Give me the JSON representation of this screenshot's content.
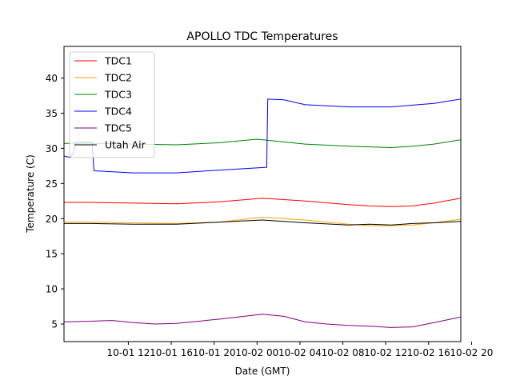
{
  "chart_data": {
    "type": "line",
    "title": "APOLLO TDC Temperatures",
    "xlabel": "Date (GMT)",
    "ylabel": "Temperature (C)",
    "xlim": [
      -2.5,
      34.5
    ],
    "ylim": [
      2.5,
      44.5
    ],
    "x_units": "hours since 10-01 08:00 GMT",
    "xticks": [
      {
        "x": 3.5,
        "label": "10-01 12"
      },
      {
        "x": 7.5,
        "label": "10-01 16"
      },
      {
        "x": 11.5,
        "label": "10-01 20"
      },
      {
        "x": 15.5,
        "label": "10-02 00"
      },
      {
        "x": 19.5,
        "label": "10-02 04"
      },
      {
        "x": 23.5,
        "label": "10-02 08"
      },
      {
        "x": 27.5,
        "label": "10-02 12"
      },
      {
        "x": 31.5,
        "label": "10-02 16"
      },
      {
        "x": 35.5,
        "label": "10-02 20"
      }
    ],
    "yticks": [
      5,
      10,
      15,
      20,
      25,
      30,
      35,
      40
    ],
    "grid": false,
    "legend_position": "top-left",
    "series": [
      {
        "name": "TDC1",
        "color": "#ff0000",
        "x": [
          -2.5,
          0,
          4,
          8,
          12,
          16,
          20,
          24,
          26,
          28,
          30,
          32,
          34.5
        ],
        "y": [
          22.3,
          22.3,
          22.2,
          22.1,
          22.4,
          22.9,
          22.5,
          22.0,
          21.8,
          21.7,
          21.8,
          22.2,
          22.9
        ]
      },
      {
        "name": "TDC2",
        "color": "#ffa500",
        "x": [
          -2.5,
          0,
          4,
          8,
          12,
          16,
          20,
          24,
          26,
          28,
          30,
          32,
          34.5
        ],
        "y": [
          19.5,
          19.5,
          19.4,
          19.3,
          19.5,
          20.2,
          19.8,
          19.2,
          19.0,
          19.0,
          19.1,
          19.4,
          19.9
        ]
      },
      {
        "name": "TDC3",
        "color": "#008000",
        "x": [
          -2.5,
          0,
          4,
          8,
          12,
          15.5,
          20,
          24,
          28,
          30,
          32,
          34.5
        ],
        "y": [
          30.7,
          30.7,
          30.6,
          30.5,
          30.8,
          31.3,
          30.6,
          30.3,
          30.1,
          30.3,
          30.6,
          31.2
        ]
      },
      {
        "name": "TDC4",
        "color": "#0000ff",
        "x": [
          -2.5,
          -1.9,
          -1.6,
          -1.4,
          0.1,
          0.3,
          4,
          8,
          12,
          16.4,
          16.5,
          18,
          20,
          24,
          28,
          32,
          34.5
        ],
        "y": [
          28.9,
          28.7,
          29.4,
          30.9,
          30.9,
          26.8,
          26.5,
          26.5,
          26.9,
          27.3,
          37.0,
          36.9,
          36.2,
          35.9,
          35.9,
          36.4,
          37.0
        ]
      },
      {
        "name": "TDC5",
        "color": "#800080",
        "x": [
          -2.5,
          0,
          2,
          4,
          6,
          8,
          12,
          16,
          18,
          20,
          22,
          24,
          26,
          28,
          30,
          32,
          34.5
        ],
        "y": [
          5.3,
          5.4,
          5.5,
          5.2,
          5.0,
          5.1,
          5.7,
          6.4,
          6.1,
          5.3,
          5.0,
          4.8,
          4.7,
          4.5,
          4.6,
          5.2,
          6.0
        ]
      },
      {
        "name": "Utah Air",
        "color": "#000000",
        "x": [
          -2.5,
          0,
          4,
          8,
          12,
          16,
          20,
          24,
          26,
          28,
          30,
          32,
          34.5
        ],
        "y": [
          19.3,
          19.3,
          19.2,
          19.2,
          19.5,
          19.8,
          19.4,
          19.1,
          19.2,
          19.1,
          19.3,
          19.4,
          19.6
        ]
      }
    ],
    "legend": [
      "TDC1",
      "TDC2",
      "TDC3",
      "TDC4",
      "TDC5",
      "Utah Air"
    ]
  }
}
